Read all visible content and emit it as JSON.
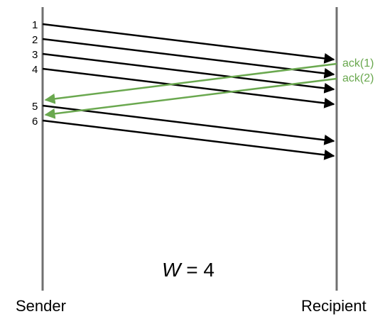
{
  "endpoints": {
    "sender": "Sender",
    "recipient": "Recipient"
  },
  "packets": [
    {
      "label": "1"
    },
    {
      "label": "2"
    },
    {
      "label": "3"
    },
    {
      "label": "4"
    },
    {
      "label": "5"
    },
    {
      "label": "6"
    }
  ],
  "acks": [
    {
      "label": "ack(1)"
    },
    {
      "label": "ack(2)"
    }
  ],
  "window": {
    "variable": "W",
    "equals": " = ",
    "value": "4"
  },
  "colors": {
    "packet": "#000000",
    "ack": "#6aa84f",
    "timeline": "#707070"
  }
}
